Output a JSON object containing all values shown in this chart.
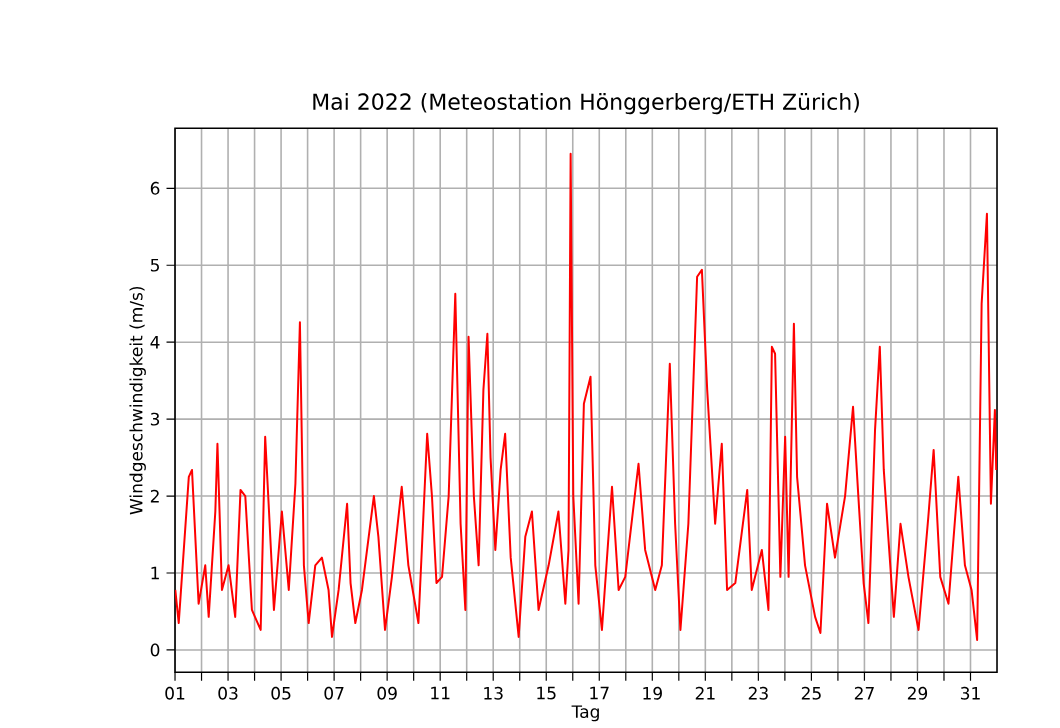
{
  "chart_data": {
    "type": "line",
    "title": "Mai 2022  (Meteostation Hönggerberg/ETH Zürich)",
    "xlabel": "Tag",
    "ylabel": "Windgeschwindigkeit (m/s)",
    "x": [
      1.01,
      1.14,
      1.52,
      1.64,
      1.89,
      2.14,
      2.27,
      2.52,
      2.6,
      2.77,
      3.02,
      3.27,
      3.47,
      3.65,
      3.9,
      4.23,
      4.4,
      4.53,
      4.73,
      5.03,
      5.29,
      5.54,
      5.71,
      5.86,
      6.04,
      6.29,
      6.54,
      6.79,
      6.92,
      7.17,
      7.49,
      7.62,
      7.8,
      8.05,
      8.5,
      8.67,
      8.92,
      9.18,
      9.55,
      9.8,
      10.18,
      10.51,
      10.69,
      10.86,
      11.07,
      11.32,
      11.57,
      11.77,
      11.95,
      12.07,
      12.27,
      12.45,
      12.63,
      12.78,
      12.9,
      13.08,
      13.28,
      13.45,
      13.66,
      13.96,
      14.21,
      14.46,
      14.71,
      15.09,
      15.46,
      15.72,
      15.84,
      15.92,
      16.02,
      16.22,
      16.42,
      16.67,
      16.85,
      17.1,
      17.48,
      17.73,
      17.98,
      18.48,
      18.73,
      19.11,
      19.36,
      19.66,
      19.86,
      20.06,
      20.36,
      20.69,
      20.87,
      21.07,
      21.37,
      21.62,
      21.82,
      22.13,
      22.58,
      22.75,
      23.13,
      23.38,
      23.51,
      23.63,
      23.83,
      24.01,
      24.14,
      24.34,
      24.46,
      24.76,
      25.14,
      25.34,
      25.59,
      25.89,
      26.27,
      26.57,
      26.77,
      26.97,
      27.15,
      27.4,
      27.58,
      27.73,
      27.9,
      28.11,
      28.36,
      28.66,
      29.04,
      29.41,
      29.61,
      29.86,
      30.17,
      30.54,
      30.79,
      31.04,
      31.25,
      31.42,
      31.62,
      31.77,
      31.92,
      31.97
    ],
    "series": [
      {
        "color": "#ff0000",
        "values": [
          0.78,
          0.35,
          2.25,
          2.34,
          0.6,
          1.1,
          0.43,
          1.8,
          2.68,
          0.78,
          1.1,
          0.43,
          2.08,
          2.0,
          0.52,
          0.26,
          2.77,
          1.9,
          0.52,
          1.8,
          0.78,
          2.16,
          4.26,
          1.1,
          0.35,
          1.1,
          1.2,
          0.78,
          0.17,
          0.78,
          1.9,
          0.87,
          0.35,
          0.78,
          2.0,
          1.47,
          0.26,
          0.95,
          2.12,
          1.1,
          0.35,
          2.81,
          2.0,
          0.87,
          0.95,
          2.0,
          4.63,
          1.64,
          0.52,
          4.07,
          2.0,
          1.1,
          3.38,
          4.11,
          2.5,
          1.3,
          2.34,
          2.81,
          1.2,
          0.17,
          1.47,
          1.8,
          0.52,
          1.1,
          1.8,
          0.6,
          1.3,
          6.45,
          2.0,
          0.6,
          3.2,
          3.55,
          1.1,
          0.26,
          2.12,
          0.78,
          0.95,
          2.42,
          1.3,
          0.78,
          1.1,
          3.72,
          1.64,
          0.26,
          1.64,
          4.85,
          4.94,
          3.38,
          1.64,
          2.68,
          0.78,
          0.87,
          2.08,
          0.78,
          1.3,
          0.52,
          3.94,
          3.85,
          0.95,
          2.77,
          0.95,
          4.24,
          2.25,
          1.1,
          0.43,
          0.22,
          1.9,
          1.2,
          2.0,
          3.16,
          2.0,
          0.87,
          0.35,
          2.86,
          3.94,
          2.34,
          1.47,
          0.43,
          1.64,
          0.95,
          0.26,
          1.73,
          2.6,
          0.95,
          0.6,
          2.25,
          1.1,
          0.78,
          0.13,
          4.5,
          5.67,
          1.9,
          3.12,
          2.34
        ]
      }
    ],
    "xlim": [
      1,
      32
    ],
    "ylim": [
      -0.29,
      6.78
    ],
    "xticks": [
      {
        "value": 1,
        "label": "01"
      },
      {
        "value": 2,
        "label": null
      },
      {
        "value": 3,
        "label": "03"
      },
      {
        "value": 4,
        "label": null
      },
      {
        "value": 5,
        "label": "05"
      },
      {
        "value": 6,
        "label": null
      },
      {
        "value": 7,
        "label": "07"
      },
      {
        "value": 8,
        "label": null
      },
      {
        "value": 9,
        "label": "09"
      },
      {
        "value": 10,
        "label": null
      },
      {
        "value": 11,
        "label": "11"
      },
      {
        "value": 12,
        "label": null
      },
      {
        "value": 13,
        "label": "13"
      },
      {
        "value": 14,
        "label": null
      },
      {
        "value": 15,
        "label": "15"
      },
      {
        "value": 16,
        "label": null
      },
      {
        "value": 17,
        "label": "17"
      },
      {
        "value": 18,
        "label": null
      },
      {
        "value": 19,
        "label": "19"
      },
      {
        "value": 20,
        "label": null
      },
      {
        "value": 21,
        "label": "21"
      },
      {
        "value": 22,
        "label": null
      },
      {
        "value": 23,
        "label": "23"
      },
      {
        "value": 24,
        "label": null
      },
      {
        "value": 25,
        "label": "25"
      },
      {
        "value": 26,
        "label": null
      },
      {
        "value": 27,
        "label": "27"
      },
      {
        "value": 28,
        "label": null
      },
      {
        "value": 29,
        "label": "29"
      },
      {
        "value": 30,
        "label": null
      },
      {
        "value": 31,
        "label": "31"
      }
    ],
    "yticks": [
      0,
      1,
      2,
      3,
      4,
      5,
      6
    ],
    "grid": true,
    "marker": "none",
    "line_style": "solid"
  }
}
